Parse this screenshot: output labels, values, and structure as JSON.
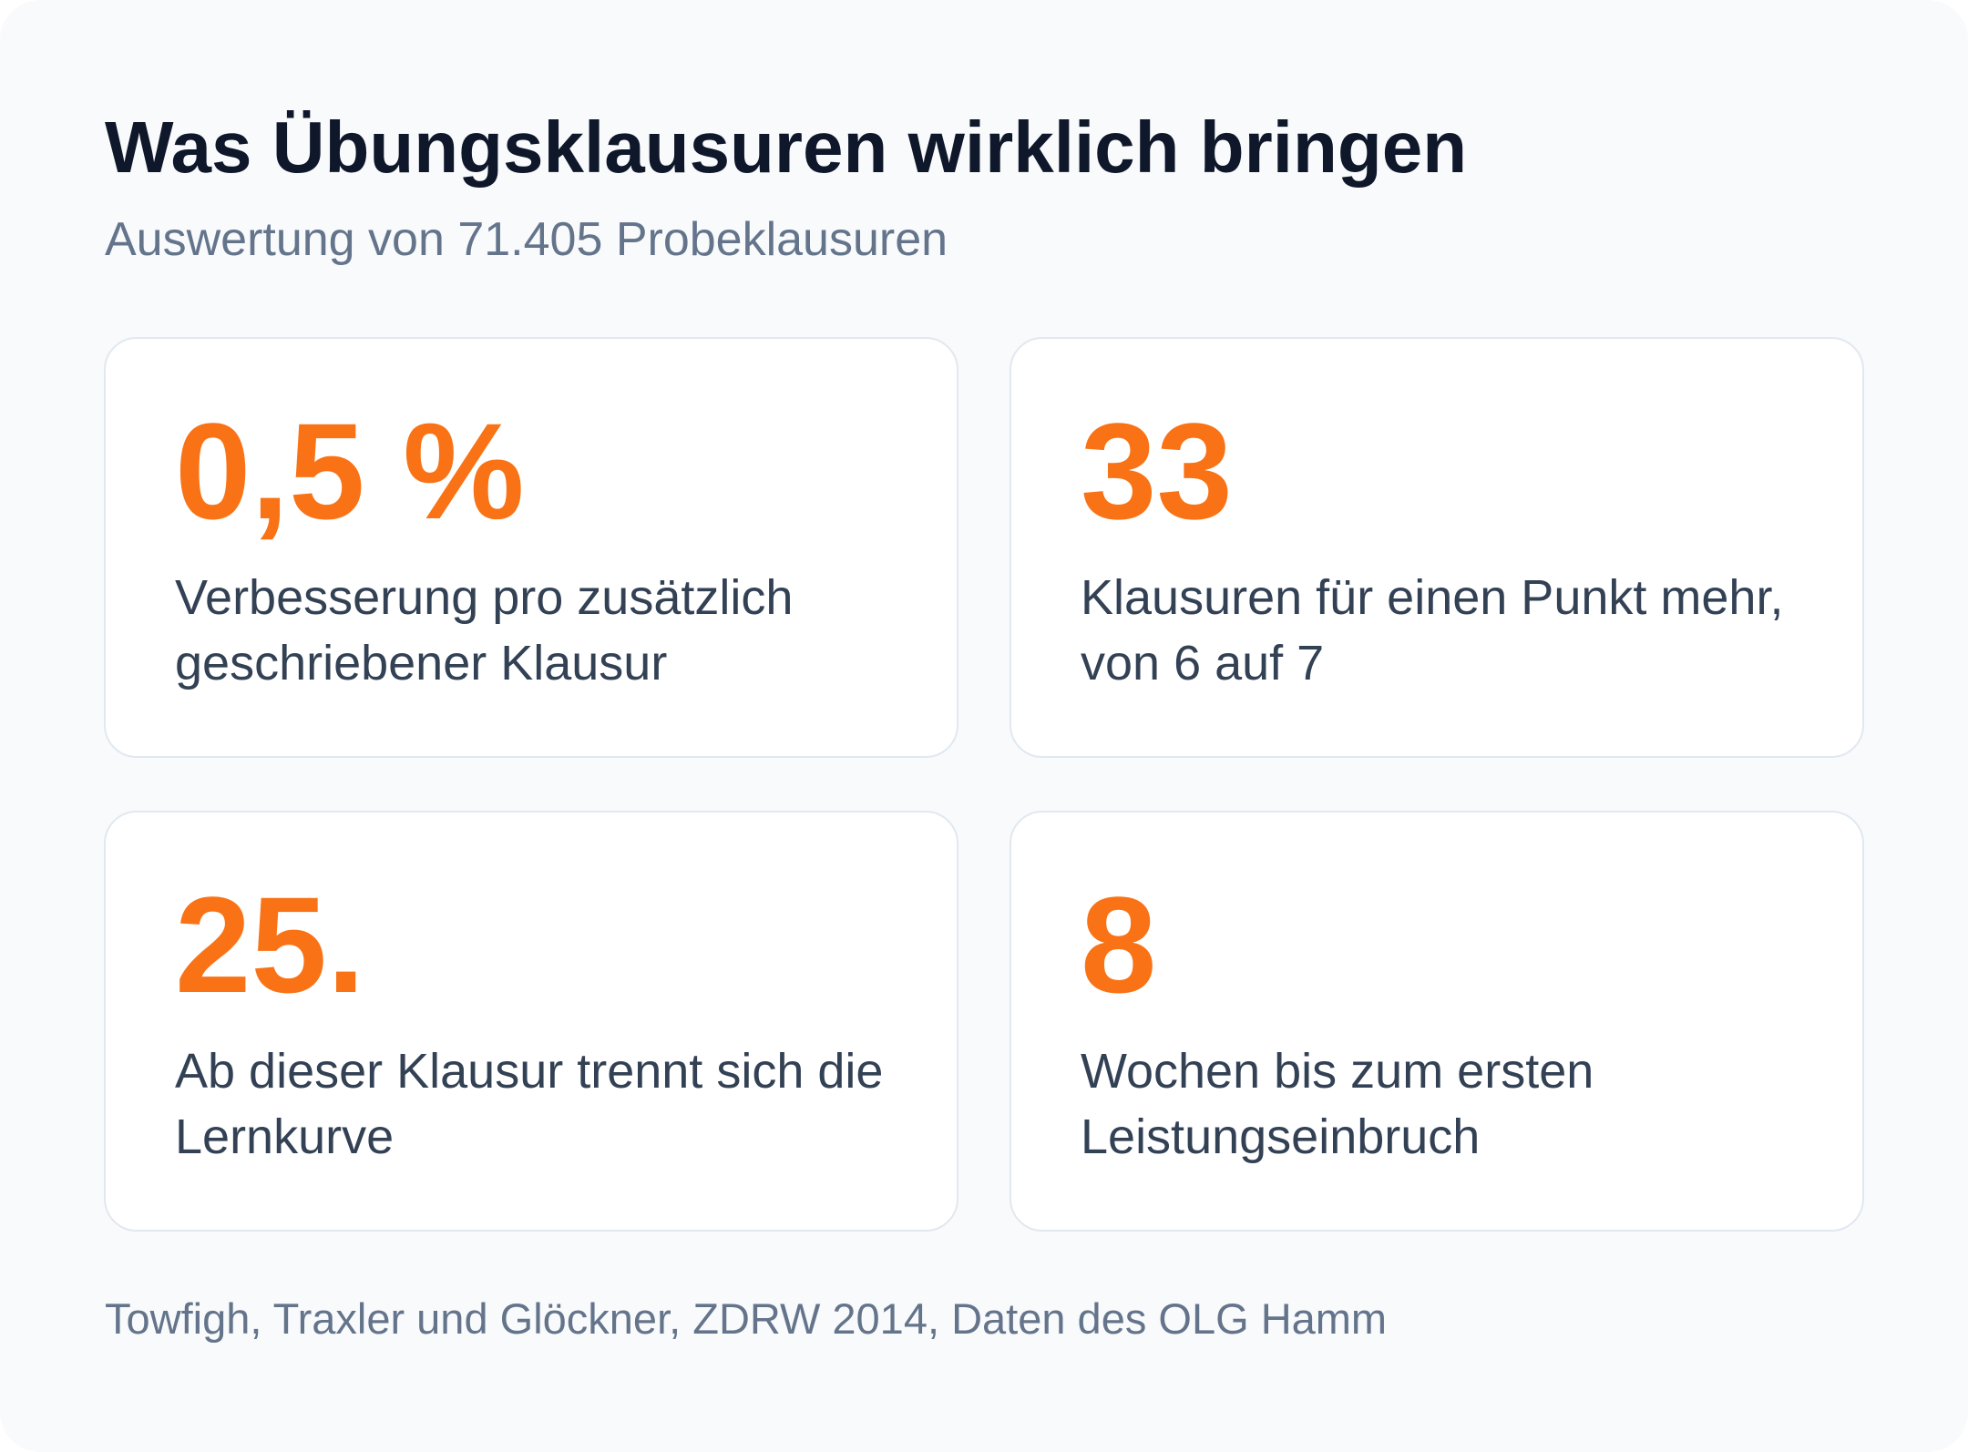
{
  "header": {
    "title": "Was Übungsklausuren wirklich bringen",
    "subtitle": "Auswertung von 71.405 Probeklausuren"
  },
  "stats": [
    {
      "value": "0,5 %",
      "label": "Verbesserung pro zusätzlich geschriebener Klausur"
    },
    {
      "value": "33",
      "label": "Klausuren für einen Punkt mehr, von 6 auf 7"
    },
    {
      "value": "25.",
      "label": "Ab dieser Klausur trennt sich die Lernkurve"
    },
    {
      "value": "8",
      "label": "Wochen bis zum ersten Leistungseinbruch"
    }
  ],
  "footer": {
    "source": "Towfigh, Traxler und Glöckner, ZDRW 2014, Daten des OLG Hamm"
  },
  "colors": {
    "accent": "#f97316",
    "title": "#0f172a",
    "muted": "#64748b",
    "body": "#334155",
    "background": "#f8fafc",
    "card": "#ffffff",
    "border": "#e2e8f0"
  }
}
